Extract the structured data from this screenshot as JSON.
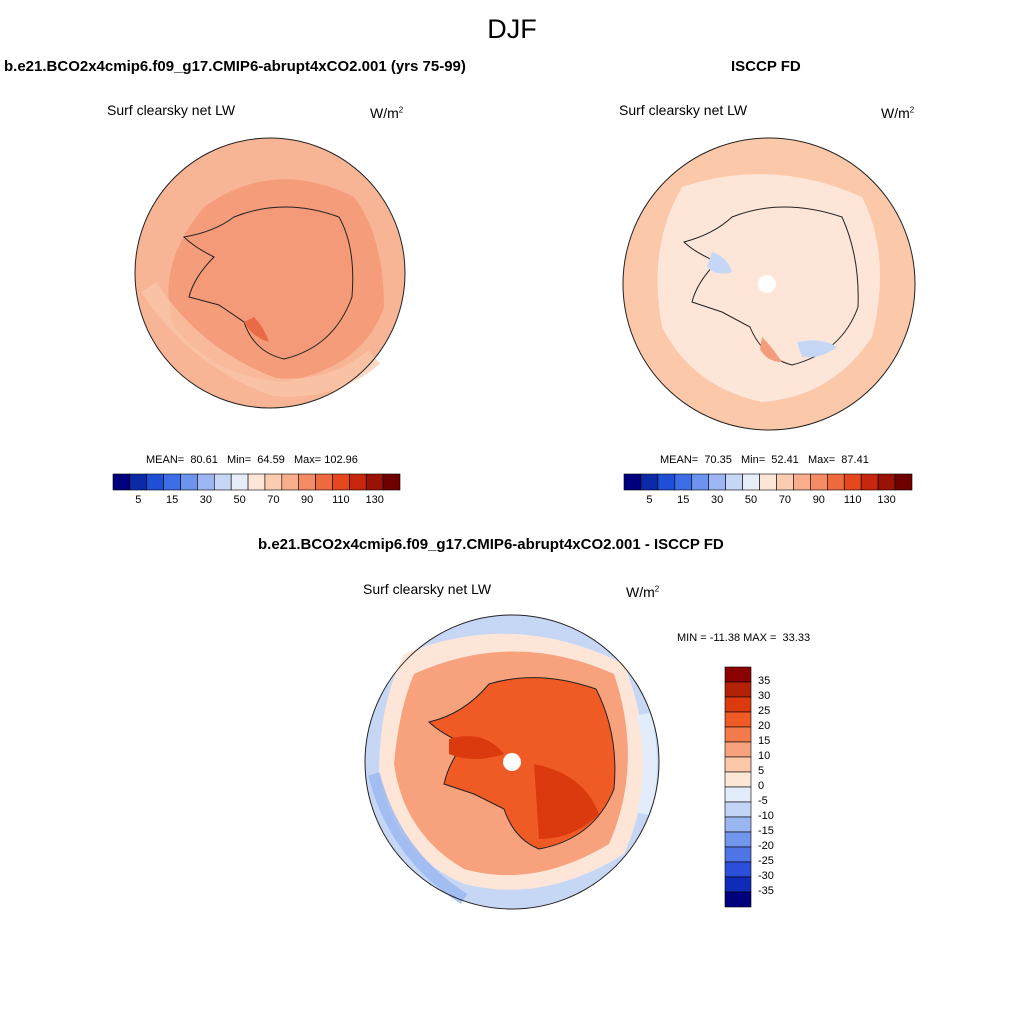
{
  "season": "DJF",
  "panels": [
    {
      "title": "b.e21.BCO2x4cmip6.f09_g17.CMIP6-abrupt4xCO2.001 (yrs 75-99)",
      "variable": "Surf clearsky net LW",
      "units_base": "W/m",
      "units_exp": "2",
      "stats": "MEAN=  80.61   Min=  64.59   Max= 102.96",
      "colorbar_labels": [
        "5",
        "15",
        "30",
        "50",
        "70",
        "90",
        "110",
        "130"
      ]
    },
    {
      "title": "ISCCP FD",
      "variable": "Surf clearsky net LW",
      "units_base": "W/m",
      "units_exp": "2",
      "stats": "MEAN=  70.35   Min=  52.41   Max=  87.41",
      "colorbar_labels": [
        "5",
        "15",
        "30",
        "50",
        "70",
        "90",
        "110",
        "130"
      ]
    },
    {
      "title": "b.e21.BCO2x4cmip6.f09_g17.CMIP6-abrupt4xCO2.001 - ISCCP FD",
      "variable": "Surf clearsky net LW",
      "units_base": "W/m",
      "units_exp": "2",
      "stats": "MIN = -11.38 MAX =  33.33",
      "colorbar_labels": [
        "35",
        "30",
        "25",
        "20",
        "15",
        "10",
        "5",
        "0",
        "-5",
        "-10",
        "-15",
        "-20",
        "-25",
        "-30",
        "-35"
      ]
    }
  ],
  "colors": {
    "abs_scale": [
      "#00007f",
      "#0a2aa8",
      "#1f4fd6",
      "#3d6ee8",
      "#6c93ee",
      "#9bb6f2",
      "#c6d7f6",
      "#e6eefa",
      "#fde6d8",
      "#fbcbb2",
      "#f8ad8c",
      "#f38b64",
      "#ee6a3f",
      "#e4481c",
      "#c6270d",
      "#9a1106",
      "#6e0000"
    ],
    "diff_scale": [
      "#8b0000",
      "#b32106",
      "#db3a0e",
      "#f05a25",
      "#f37a4a",
      "#f7a27c",
      "#fbc8aa",
      "#fde8d8",
      "#e3ecfa",
      "#c3d5f6",
      "#99b6f1",
      "#7396ed",
      "#4f74e6",
      "#2b4fda",
      "#102bb8",
      "#00007f"
    ]
  }
}
